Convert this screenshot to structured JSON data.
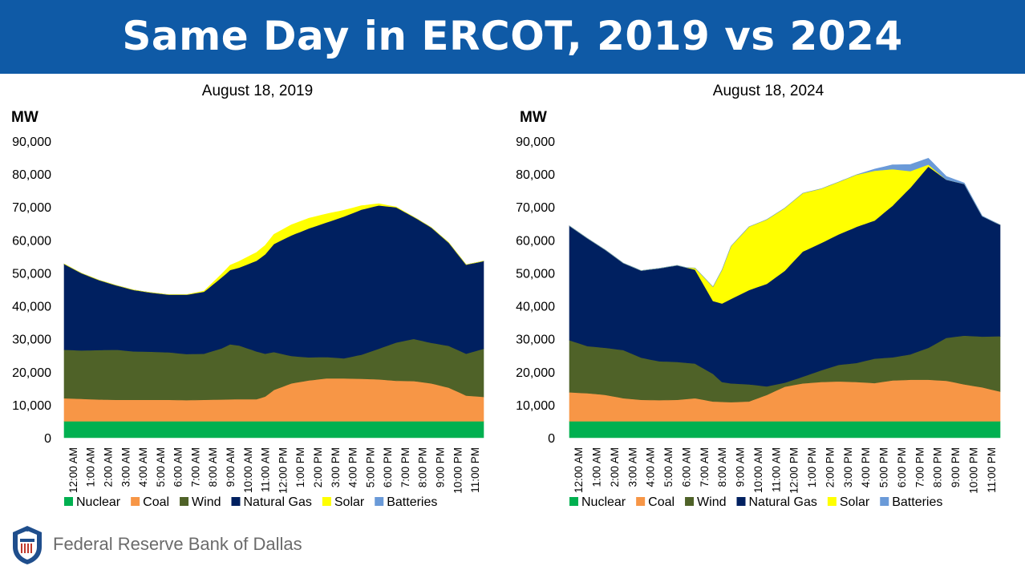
{
  "title": "Same Day in ERCOT, 2019 vs 2024",
  "footer": {
    "org": "Federal Reserve Bank of Dallas",
    "logo_icon": "federal-reserve-seal-icon"
  },
  "colors": {
    "Nuclear": "#00b050",
    "Coal": "#f79646",
    "Wind": "#4f6228",
    "Natural Gas": "#002060",
    "Solar": "#ffff00",
    "Batteries": "#6a9ad8",
    "banner": "#0f5aa6"
  },
  "chart_data": [
    {
      "type": "area",
      "stacked": true,
      "title": "August 18, 2019",
      "ylabel": "MW",
      "xlabel": "",
      "ylim": [
        0,
        90000
      ],
      "yticks": [
        0,
        10000,
        20000,
        30000,
        40000,
        50000,
        60000,
        70000,
        80000,
        90000
      ],
      "ytick_labels": [
        "0",
        "10,000",
        "20,000",
        "30,000",
        "40,000",
        "50,000",
        "60,000",
        "70,000",
        "80,000",
        "90,000"
      ],
      "categories": [
        "12:00 AM",
        "1:00 AM",
        "2:00 AM",
        "3:00 AM",
        "4:00 AM",
        "5:00 AM",
        "6:00 AM",
        "7:00 AM",
        "8:00 AM",
        "9:00 AM",
        "10:00 AM",
        "11:00 AM",
        "12:00 PM",
        "1:00 PM",
        "2:00 PM",
        "3:00 PM",
        "4:00 PM",
        "5:00 PM",
        "6:00 PM",
        "7:00 PM",
        "8:00 PM",
        "9:00 PM",
        "10:00 PM",
        "11:00 PM"
      ],
      "x_end": 24,
      "series": [
        {
          "name": "Nuclear",
          "x": [
            0,
            24
          ],
          "values": [
            5000,
            5000
          ]
        },
        {
          "name": "Coal",
          "x": [
            0,
            1,
            2,
            3,
            4,
            5,
            6,
            7,
            8,
            9,
            10,
            11,
            11.5,
            12,
            13,
            14,
            15,
            16,
            17,
            18,
            19,
            20,
            21,
            22,
            23,
            24
          ],
          "values": [
            7000,
            6800,
            6600,
            6500,
            6500,
            6500,
            6500,
            6400,
            6500,
            6600,
            6700,
            6700,
            7500,
            9500,
            11500,
            12400,
            13000,
            13000,
            12900,
            12700,
            12300,
            12200,
            11500,
            10200,
            7800,
            7400
          ]
        },
        {
          "name": "Wind",
          "x": [
            0,
            1,
            2,
            3,
            4,
            5,
            6,
            7,
            8,
            9,
            9.5,
            10,
            11,
            12,
            13,
            14,
            15,
            16,
            17,
            18,
            19,
            20,
            21,
            22,
            23,
            24
          ],
          "values": [
            14700,
            14700,
            15000,
            15200,
            14700,
            14600,
            14400,
            14000,
            14000,
            15500,
            16700,
            16300,
            14500,
            11500,
            8300,
            7000,
            6500,
            6100,
            7300,
            9300,
            11600,
            12800,
            12300,
            12700,
            12700,
            14600
          ]
        },
        {
          "name": "Natural Gas",
          "x": [
            0,
            1,
            2,
            3,
            4,
            5,
            6,
            7,
            8,
            9,
            10,
            11,
            12,
            13,
            14,
            15,
            16,
            17,
            18,
            19,
            20,
            21,
            22,
            23,
            24
          ],
          "values": [
            26000,
            23400,
            21200,
            19500,
            18600,
            17900,
            17500,
            18000,
            18800,
            21500,
            23600,
            27500,
            32800,
            36600,
            39100,
            40800,
            43000,
            44000,
            43500,
            41000,
            37000,
            35000,
            31300,
            27000,
            26600
          ]
        },
        {
          "name": "Solar",
          "x": [
            0,
            7,
            8,
            9,
            10,
            11,
            12,
            13,
            14,
            15,
            16,
            17,
            18,
            19,
            20,
            24
          ],
          "values": [
            0,
            0,
            200,
            1000,
            1900,
            2500,
            2900,
            3200,
            3100,
            2600,
            1900,
            1200,
            500,
            100,
            0,
            0
          ]
        },
        {
          "name": "Batteries",
          "x": [
            0,
            24
          ],
          "values": [
            0,
            0
          ]
        }
      ],
      "legend": [
        "Nuclear",
        "Coal",
        "Wind",
        "Natural Gas",
        "Solar",
        "Batteries"
      ],
      "legend_position": "bottom"
    },
    {
      "type": "area",
      "stacked": true,
      "title": "August 18, 2024",
      "ylabel": "MW",
      "xlabel": "",
      "ylim": [
        0,
        90000
      ],
      "yticks": [
        0,
        10000,
        20000,
        30000,
        40000,
        50000,
        60000,
        70000,
        80000,
        90000
      ],
      "ytick_labels": [
        "0",
        "10,000",
        "20,000",
        "30,000",
        "40,000",
        "50,000",
        "60,000",
        "70,000",
        "80,000",
        "90,000"
      ],
      "categories": [
        "12:00 AM",
        "1:00 AM",
        "2:00 AM",
        "3:00 AM",
        "4:00 AM",
        "5:00 AM",
        "6:00 AM",
        "7:00 AM",
        "8:00 AM",
        "9:00 AM",
        "10:00 AM",
        "11:00 AM",
        "12:00 PM",
        "1:00 PM",
        "2:00 PM",
        "3:00 PM",
        "4:00 PM",
        "5:00 PM",
        "6:00 PM",
        "7:00 PM",
        "8:00 PM",
        "9:00 PM",
        "10:00 PM",
        "11:00 PM"
      ],
      "x_end": 24,
      "series": [
        {
          "name": "Nuclear",
          "x": [
            0,
            24
          ],
          "values": [
            5000,
            5000
          ]
        },
        {
          "name": "Coal",
          "x": [
            0,
            1,
            2,
            3,
            4,
            5,
            6,
            7,
            8,
            9,
            10,
            11,
            12,
            13,
            14,
            15,
            16,
            17,
            18,
            19,
            20,
            21,
            22,
            23,
            24
          ],
          "values": [
            8800,
            8500,
            8000,
            7000,
            6500,
            6400,
            6500,
            7000,
            6000,
            5800,
            6000,
            8000,
            10500,
            11500,
            11900,
            12100,
            11900,
            11600,
            12400,
            12600,
            12600,
            12300,
            11200,
            10300,
            9000
          ]
        },
        {
          "name": "Wind",
          "x": [
            0,
            1,
            2,
            3,
            4,
            5,
            6,
            7,
            8,
            8.5,
            9,
            10,
            11,
            12,
            13,
            14,
            15,
            16,
            17,
            18,
            19,
            20,
            21,
            22,
            23,
            24
          ],
          "values": [
            15800,
            14300,
            14300,
            14600,
            12800,
            11800,
            11500,
            10500,
            8400,
            6000,
            5700,
            5200,
            2600,
            1200,
            2000,
            3500,
            5000,
            5800,
            7400,
            7000,
            7700,
            9700,
            13000,
            14800,
            15400,
            16800
          ]
        },
        {
          "name": "Natural Gas",
          "x": [
            0,
            1,
            2,
            3,
            4,
            5,
            6,
            7,
            8,
            9,
            10,
            11,
            12,
            13,
            14,
            15,
            16,
            17,
            18,
            19,
            20,
            21,
            22,
            23,
            24
          ],
          "values": [
            34700,
            32700,
            29700,
            26400,
            26400,
            28200,
            29300,
            28500,
            22100,
            25600,
            28600,
            31100,
            34000,
            38000,
            38600,
            39600,
            41300,
            41900,
            46000,
            50600,
            55000,
            48000,
            46000,
            36500,
            33800
          ]
        },
        {
          "name": "Solar",
          "x": [
            0,
            6.5,
            7,
            8,
            9,
            10,
            11,
            12,
            13,
            14,
            15,
            16,
            17,
            18,
            19,
            20,
            21,
            24
          ],
          "values": [
            0,
            0,
            500,
            4300,
            16000,
            19200,
            19500,
            19000,
            17700,
            16500,
            15900,
            15800,
            15100,
            11100,
            5000,
            600,
            0,
            0
          ]
        },
        {
          "name": "Batteries",
          "x": [
            0,
            16,
            17,
            18,
            19,
            20,
            21,
            22,
            23,
            24
          ],
          "values": [
            0,
            0,
            500,
            1300,
            2000,
            1900,
            1000,
            300,
            100,
            0
          ]
        }
      ],
      "legend": [
        "Nuclear",
        "Coal",
        "Wind",
        "Natural Gas",
        "Solar",
        "Batteries"
      ],
      "legend_position": "bottom"
    }
  ]
}
